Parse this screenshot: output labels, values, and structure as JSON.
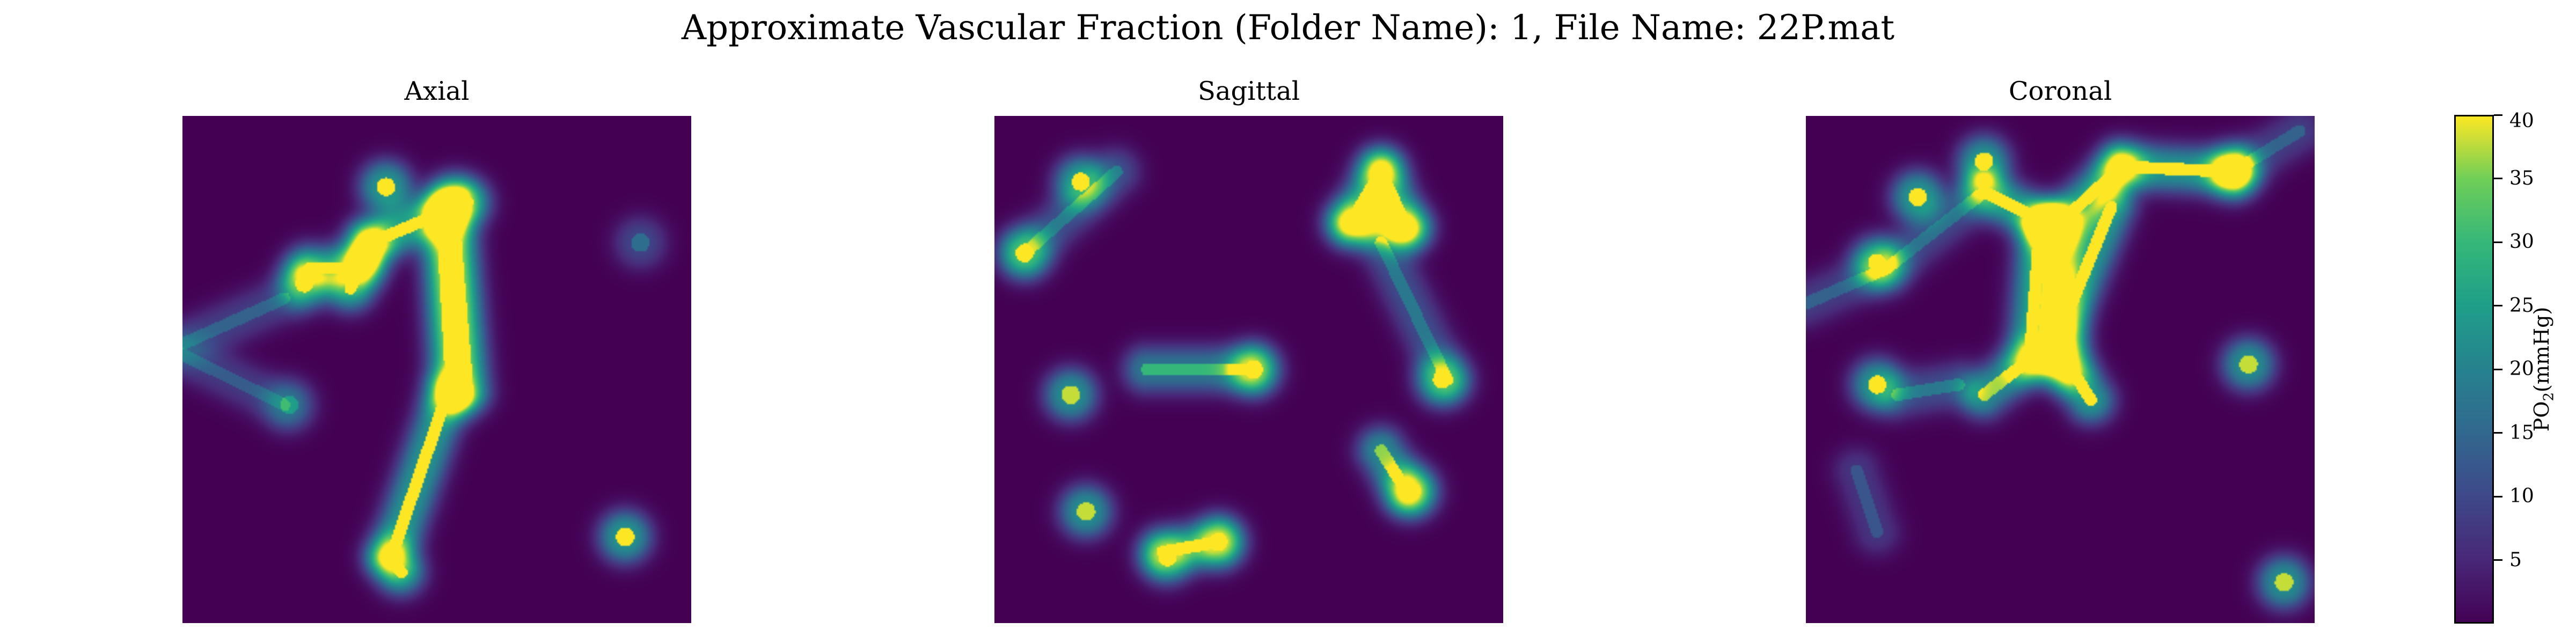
{
  "figure": {
    "title": "Approximate Vascular Fraction (Folder Name): 1, File Name: 22P.mat"
  },
  "chart_data": {
    "type": "heatmap",
    "panels": [
      {
        "title": "Axial",
        "vessels": [
          {
            "kind": "line",
            "from": [
              0.37,
              0.25
            ],
            "to": [
              0.56,
              0.17
            ],
            "level": 40
          },
          {
            "kind": "line",
            "from": [
              0.37,
              0.25
            ],
            "to": [
              0.33,
              0.34
            ],
            "level": 40
          },
          {
            "kind": "line",
            "from": [
              0.35,
              0.3
            ],
            "to": [
              0.25,
              0.3
            ],
            "level": 38
          },
          {
            "kind": "line",
            "from": [
              0.51,
              0.19
            ],
            "to": [
              0.53,
              0.55
            ],
            "level": 40
          },
          {
            "kind": "line",
            "from": [
              0.53,
              0.16
            ],
            "to": [
              0.56,
              0.54
            ],
            "level": 40
          },
          {
            "kind": "line",
            "from": [
              0.52,
              0.55
            ],
            "to": [
              0.41,
              0.87
            ],
            "level": 40
          },
          {
            "kind": "line",
            "from": [
              0.41,
              0.87
            ],
            "to": [
              0.43,
              0.9
            ],
            "level": 38
          },
          {
            "kind": "line",
            "from": [
              0.0,
              0.45
            ],
            "to": [
              0.2,
              0.36
            ],
            "level": 14
          },
          {
            "kind": "line",
            "from": [
              0.0,
              0.47
            ],
            "to": [
              0.2,
              0.57
            ],
            "level": 13
          },
          {
            "kind": "blob",
            "at": [
              0.4,
              0.14
            ],
            "level": 40
          },
          {
            "kind": "blob",
            "at": [
              0.24,
              0.33
            ],
            "level": 38
          },
          {
            "kind": "blob",
            "at": [
              0.87,
              0.83
            ],
            "level": 40
          },
          {
            "kind": "blob",
            "at": [
              0.9,
              0.25
            ],
            "level": 16
          },
          {
            "kind": "blob",
            "at": [
              0.21,
              0.57
            ],
            "level": 18
          }
        ]
      },
      {
        "title": "Sagittal",
        "vessels": [
          {
            "kind": "blob",
            "at": [
              0.51,
              0.5
            ],
            "level": 40
          },
          {
            "kind": "line",
            "from": [
              0.3,
              0.5
            ],
            "to": [
              0.5,
              0.5
            ],
            "level": 30
          },
          {
            "kind": "blob",
            "at": [
              0.15,
              0.55
            ],
            "level": 38
          },
          {
            "kind": "blob",
            "at": [
              0.17,
              0.13
            ],
            "level": 38
          },
          {
            "kind": "line",
            "from": [
              0.06,
              0.27
            ],
            "to": [
              0.24,
              0.11
            ],
            "level": 18
          },
          {
            "kind": "blob",
            "at": [
              0.06,
              0.27
            ],
            "level": 38
          },
          {
            "kind": "line",
            "from": [
              0.7,
              0.21
            ],
            "to": [
              0.76,
              0.11
            ],
            "level": 38
          },
          {
            "kind": "line",
            "from": [
              0.76,
              0.11
            ],
            "to": [
              0.81,
              0.22
            ],
            "level": 38
          },
          {
            "kind": "line",
            "from": [
              0.7,
              0.21
            ],
            "to": [
              0.81,
              0.22
            ],
            "level": 38
          },
          {
            "kind": "line",
            "from": [
              0.76,
              0.25
            ],
            "to": [
              0.89,
              0.52
            ],
            "level": 18
          },
          {
            "kind": "blob",
            "at": [
              0.88,
              0.52
            ],
            "level": 40
          },
          {
            "kind": "line",
            "from": [
              0.76,
              0.66
            ],
            "to": [
              0.81,
              0.74
            ],
            "level": 36
          },
          {
            "kind": "blob",
            "at": [
              0.82,
              0.74
            ],
            "level": 40
          },
          {
            "kind": "blob",
            "at": [
              0.18,
              0.78
            ],
            "level": 38
          },
          {
            "kind": "line",
            "from": [
              0.33,
              0.86
            ],
            "to": [
              0.44,
              0.84
            ],
            "level": 30
          },
          {
            "kind": "blob",
            "at": [
              0.44,
              0.84
            ],
            "level": 40
          },
          {
            "kind": "blob",
            "at": [
              0.34,
              0.87
            ],
            "level": 38
          }
        ]
      },
      {
        "title": "Coronal",
        "vessels": [
          {
            "kind": "line",
            "from": [
              0.35,
              0.15
            ],
            "to": [
              0.49,
              0.22
            ],
            "level": 40
          },
          {
            "kind": "line",
            "from": [
              0.49,
              0.22
            ],
            "to": [
              0.62,
              0.1
            ],
            "level": 40
          },
          {
            "kind": "line",
            "from": [
              0.62,
              0.1
            ],
            "to": [
              0.84,
              0.11
            ],
            "level": 40
          },
          {
            "kind": "line",
            "from": [
              0.49,
              0.22
            ],
            "to": [
              0.51,
              0.5
            ],
            "level": 40
          },
          {
            "kind": "line",
            "from": [
              0.46,
              0.22
            ],
            "to": [
              0.44,
              0.48
            ],
            "level": 40
          },
          {
            "kind": "line",
            "from": [
              0.51,
              0.48
            ],
            "to": [
              0.56,
              0.56
            ],
            "level": 40
          },
          {
            "kind": "line",
            "from": [
              0.44,
              0.48
            ],
            "to": [
              0.35,
              0.55
            ],
            "level": 36
          },
          {
            "kind": "line",
            "from": [
              0.6,
              0.18
            ],
            "to": [
              0.51,
              0.4
            ],
            "level": 40
          },
          {
            "kind": "line",
            "from": [
              0.35,
              0.15
            ],
            "to": [
              0.16,
              0.3
            ],
            "level": 16
          },
          {
            "kind": "line",
            "from": [
              0.0,
              0.37
            ],
            "to": [
              0.16,
              0.3
            ],
            "level": 14
          },
          {
            "kind": "blob",
            "at": [
              0.22,
              0.16
            ],
            "level": 40
          },
          {
            "kind": "blob",
            "at": [
              0.35,
              0.09
            ],
            "level": 38
          },
          {
            "kind": "blob",
            "at": [
              0.14,
              0.29
            ],
            "level": 40
          },
          {
            "kind": "blob",
            "at": [
              0.84,
              0.11
            ],
            "level": 40
          },
          {
            "kind": "line",
            "from": [
              0.84,
              0.11
            ],
            "to": [
              0.97,
              0.03
            ],
            "level": 14
          },
          {
            "kind": "line",
            "from": [
              0.3,
              0.53
            ],
            "to": [
              0.18,
              0.55
            ],
            "level": 18
          },
          {
            "kind": "blob",
            "at": [
              0.14,
              0.53
            ],
            "level": 38
          },
          {
            "kind": "blob",
            "at": [
              0.87,
              0.49
            ],
            "level": 38
          },
          {
            "kind": "blob",
            "at": [
              0.94,
              0.92
            ],
            "level": 38
          },
          {
            "kind": "line",
            "from": [
              0.1,
              0.7
            ],
            "to": [
              0.14,
              0.82
            ],
            "level": 12
          }
        ]
      }
    ],
    "colorbar": {
      "label": "PO₂(mmHg)",
      "range": [
        0,
        40
      ],
      "ticks": [
        5,
        10,
        15,
        20,
        25,
        30,
        35,
        40
      ],
      "tick_labels": [
        "5",
        "10",
        "15",
        "20",
        "25",
        "30",
        "35",
        "40"
      ]
    },
    "colormap": "viridis",
    "colormap_stops": [
      "#440154",
      "#482878",
      "#3e4989",
      "#31688e",
      "#26828e",
      "#1f9e89",
      "#35b779",
      "#6ece58",
      "#fde725"
    ]
  }
}
